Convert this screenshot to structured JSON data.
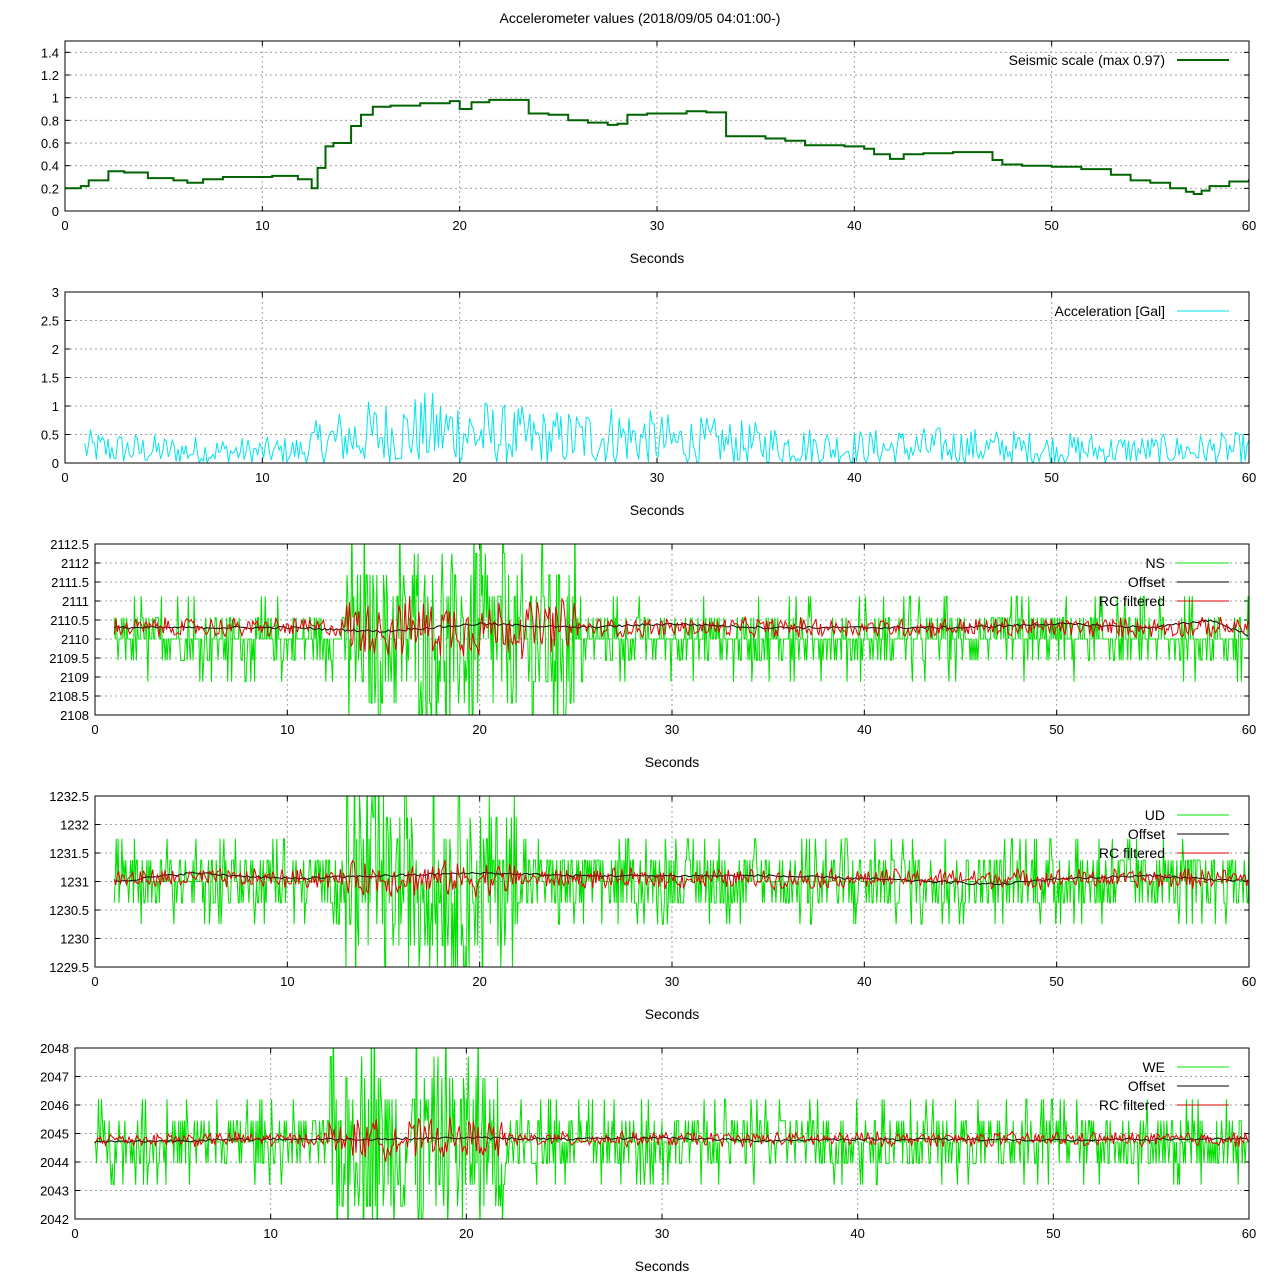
{
  "title": "Accelerometer values (2018/09/05 04:01:00-)",
  "chart_data": [
    {
      "type": "line",
      "xlabel": "Seconds",
      "ylabel": "",
      "xlim": [
        0,
        60
      ],
      "ylim": [
        0,
        1.5
      ],
      "xticks": [
        "0",
        "10",
        "20",
        "30",
        "40",
        "50",
        "60"
      ],
      "yticks": [
        "0",
        "0.2",
        "0.4",
        "0.6",
        "0.8",
        "1",
        "1.2",
        "1.4"
      ],
      "legend_position": "top-right",
      "grid": true,
      "series": [
        {
          "name": "Seismic scale (max 0.97)",
          "color": "#006400",
          "x": [
            0,
            0.8,
            1.2,
            2.2,
            3.0,
            4.2,
            5.5,
            6.2,
            7.0,
            8.0,
            10.5,
            11.8,
            12.5,
            12.8,
            13.2,
            13.6,
            14.5,
            15.0,
            15.6,
            16.5,
            18.0,
            19.5,
            20.0,
            20.6,
            21.5,
            23.0,
            23.5,
            24.5,
            25.5,
            26.5,
            27.5,
            28.0,
            28.5,
            29.5,
            30.5,
            31.5,
            32.5,
            33.5,
            34.0,
            35.5,
            36.5,
            37.5,
            39.5,
            40.5,
            41.0,
            41.8,
            42.5,
            43.5,
            45.0,
            46.5,
            47.0,
            47.5,
            48.5,
            50.0,
            51.5,
            53.0,
            54.0,
            55.0,
            56.0,
            56.8,
            57.2,
            57.6,
            58.0,
            59.0,
            60
          ],
          "y": [
            0.2,
            0.22,
            0.27,
            0.35,
            0.34,
            0.29,
            0.27,
            0.25,
            0.28,
            0.3,
            0.31,
            0.28,
            0.2,
            0.38,
            0.57,
            0.6,
            0.75,
            0.85,
            0.92,
            0.93,
            0.95,
            0.97,
            0.9,
            0.96,
            0.98,
            0.98,
            0.86,
            0.85,
            0.8,
            0.78,
            0.76,
            0.77,
            0.85,
            0.86,
            0.86,
            0.88,
            0.87,
            0.66,
            0.66,
            0.64,
            0.62,
            0.58,
            0.57,
            0.55,
            0.5,
            0.46,
            0.5,
            0.51,
            0.52,
            0.52,
            0.45,
            0.41,
            0.4,
            0.39,
            0.37,
            0.32,
            0.27,
            0.25,
            0.2,
            0.17,
            0.15,
            0.18,
            0.22,
            0.26,
            0.28
          ]
        }
      ]
    },
    {
      "type": "line",
      "xlabel": "Seconds",
      "ylabel": "",
      "xlim": [
        0,
        60
      ],
      "ylim": [
        0,
        3
      ],
      "xticks": [
        "0",
        "10",
        "20",
        "30",
        "40",
        "50",
        "60"
      ],
      "yticks": [
        "0",
        "0.5",
        "1",
        "1.5",
        "2",
        "2.5",
        "3"
      ],
      "legend_position": "top-right",
      "grid": true,
      "series": [
        {
          "name": "Acceleration [Gal]",
          "color": "#00e5ee",
          "x_range": [
            1,
            60
          ],
          "point_count": 600,
          "envelope_x": [
            1,
            5,
            10,
            12,
            13,
            15,
            18,
            20,
            22,
            25,
            28,
            30,
            33,
            36,
            40,
            45,
            50,
            55,
            60
          ],
          "envelope_peak": [
            0.6,
            0.5,
            0.45,
            0.5,
            0.85,
            1.1,
            1.25,
            1.32,
            1.05,
            0.95,
            1.1,
            0.9,
            0.8,
            0.7,
            0.6,
            0.65,
            0.55,
            0.5,
            0.55
          ]
        }
      ]
    },
    {
      "type": "line",
      "xlabel": "Seconds",
      "ylabel": "",
      "xlim": [
        0,
        60
      ],
      "ylim": [
        2108,
        2112.5
      ],
      "xticks": [
        "0",
        "10",
        "20",
        "30",
        "40",
        "50",
        "60"
      ],
      "yticks": [
        "2108",
        "2108.5",
        "2109",
        "2109.5",
        "2110",
        "2110.5",
        "2111",
        "2111.5",
        "2112",
        "2112.5"
      ],
      "legend_position": "top-right",
      "grid": true,
      "series": [
        {
          "name": "NS",
          "color": "#00e000",
          "x_range": [
            1,
            60
          ],
          "center": 2110.0,
          "base_amplitude": 0.5,
          "peak_amplitude": 2.0,
          "peak_x": [
            13,
            25
          ]
        },
        {
          "name": "Offset",
          "color": "#000000",
          "x_range": [
            1,
            60
          ],
          "x": [
            1,
            10,
            15,
            20,
            25,
            30,
            35,
            40,
            45,
            50,
            55,
            58,
            60
          ],
          "y": [
            2110.3,
            2110.3,
            2110.2,
            2110.4,
            2110.3,
            2110.4,
            2110.3,
            2110.3,
            2110.3,
            2110.4,
            2110.3,
            2110.5,
            2110.1
          ]
        },
        {
          "name": "RC filtered",
          "color": "#e00000",
          "x_range": [
            1,
            60
          ],
          "center": 2110.3,
          "base_amplitude": 0.3,
          "peak_amplitude": 0.9,
          "peak_x": [
            13,
            25
          ]
        }
      ]
    },
    {
      "type": "line",
      "xlabel": "Seconds",
      "ylabel": "",
      "xlim": [
        0,
        60
      ],
      "ylim": [
        1229.5,
        1232.5
      ],
      "xticks": [
        "0",
        "10",
        "20",
        "30",
        "40",
        "50",
        "60"
      ],
      "yticks": [
        "1229.5",
        "1230",
        "1230.5",
        "1231",
        "1231.5",
        "1232",
        "1232.5"
      ],
      "legend_position": "top-right",
      "grid": true,
      "series": [
        {
          "name": "UD",
          "color": "#00e000",
          "x_range": [
            1,
            60
          ],
          "center": 1231.0,
          "base_amplitude": 0.5,
          "peak_amplitude": 1.4,
          "peak_x": [
            13,
            22
          ]
        },
        {
          "name": "Offset",
          "color": "#000000",
          "x_range": [
            1,
            60
          ],
          "x": [
            1,
            5,
            10,
            15,
            20,
            25,
            30,
            35,
            40,
            47,
            50,
            55,
            60
          ],
          "y": [
            1231.0,
            1231.15,
            1231.05,
            1231.1,
            1231.15,
            1231.1,
            1231.1,
            1231.1,
            1231.05,
            1230.95,
            1231.05,
            1231.1,
            1231.0
          ]
        },
        {
          "name": "RC filtered",
          "color": "#e00000",
          "x_range": [
            1,
            60
          ],
          "center": 1231.05,
          "base_amplitude": 0.2,
          "peak_amplitude": 0.35,
          "peak_x": [
            13,
            22
          ]
        }
      ]
    },
    {
      "type": "line",
      "xlabel": "Seconds",
      "ylabel": "",
      "xlim": [
        0,
        60
      ],
      "ylim": [
        2042,
        2048
      ],
      "xticks": [
        "0",
        "10",
        "20",
        "30",
        "40",
        "50",
        "60"
      ],
      "yticks": [
        "2042",
        "2043",
        "2044",
        "2045",
        "2046",
        "2047",
        "2048"
      ],
      "legend_position": "top-right",
      "grid": true,
      "series": [
        {
          "name": "WE",
          "color": "#00e000",
          "x_range": [
            1,
            60
          ],
          "center": 2044.7,
          "base_amplitude": 0.8,
          "peak_amplitude": 2.7,
          "peak_x": [
            13,
            22
          ]
        },
        {
          "name": "Offset",
          "color": "#000000",
          "x_range": [
            1,
            60
          ],
          "x": [
            1,
            10,
            15,
            20,
            25,
            30,
            35,
            40,
            45,
            50,
            55,
            60
          ],
          "y": [
            2044.7,
            2044.8,
            2044.8,
            2044.85,
            2044.8,
            2044.85,
            2044.75,
            2044.8,
            2044.8,
            2044.75,
            2044.8,
            2044.8
          ]
        },
        {
          "name": "RC filtered",
          "color": "#e00000",
          "x_range": [
            1,
            60
          ],
          "center": 2044.8,
          "base_amplitude": 0.3,
          "peak_amplitude": 0.8,
          "peak_x": [
            13,
            22
          ]
        }
      ]
    }
  ]
}
